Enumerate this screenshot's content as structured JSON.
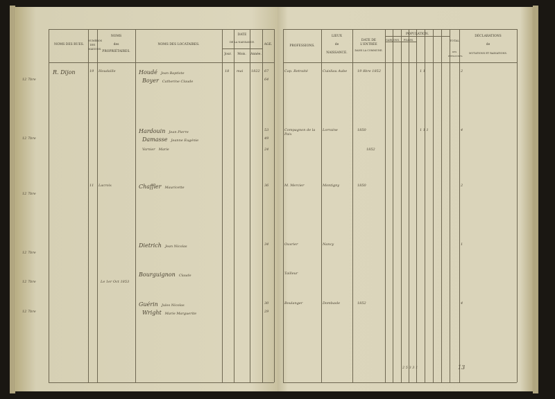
{
  "left_headers": {
    "rues": "Noms des rues.",
    "numeros": "Numéros des maisons.",
    "proprietaires_1": "Noms",
    "proprietaires_2": "des",
    "proprietaires_3": "propriétaires.",
    "locataires": "Noms des locataires.",
    "date": "Date",
    "date_sub": "de la naissance.",
    "jour": "Jour.",
    "mois": "Mois.",
    "annee": "Année.",
    "age": "Age."
  },
  "right_headers": {
    "professions": "Professions.",
    "lieux_1": "Lieux",
    "lieux_2": "de",
    "lieux_3": "naissance.",
    "entree_1": "Date de l'entrée",
    "entree_2": "dans la commune.",
    "population": "Population.",
    "garcons": "Garçons.",
    "filles": "Filles.",
    "total": "Total",
    "total_sub": "des personnes.",
    "declarations_1": "Déclarations",
    "declarations_2": "de",
    "declarations_3": "mutations et radiations."
  },
  "entries": [
    {
      "margin": "12 7bre",
      "rue": "R. Dijon",
      "num": "19",
      "prop": "Houdaille",
      "loc1": "Houdé",
      "loc1b": "Jean Baptiste",
      "loc2": "Boyer",
      "loc2b": "Catherine Claude",
      "jour": "18",
      "mois": "mai",
      "annee": "1822",
      "age": "67",
      "age2": "64",
      "prof": "Cap. Retraité",
      "lieu": "Cuisliau Aube",
      "entree": "19 8bre 1852",
      "pop": "1 1",
      "tot": "2"
    },
    {
      "margin": "12 7bre",
      "loc1": "Hardouin",
      "loc1b": "Jean Pierre",
      "loc2": "Damasse",
      "loc2b": "Jeanne Eugénie",
      "loc3": "Varnier",
      "loc3b": "Marie",
      "age": "53",
      "age2": "49",
      "age3": "24",
      "prof": "Compagnon de la Paix",
      "lieu": "Lorraine",
      "entree": "1850",
      "entree2": "1852",
      "pop": "1 1 1",
      "tot": "4"
    },
    {
      "margin": "12 7bre",
      "rue": "",
      "num": "11",
      "prop": "Lacroix",
      "loc1": "Chaffler",
      "loc1b": "Mauricette",
      "age": "36",
      "prof": "M. Mercier",
      "lieu": "Montigny",
      "entree": "1850",
      "tot": "2"
    },
    {
      "margin": "12 7bre",
      "loc1": "Dietrich",
      "loc1b": "Jean Nicolas",
      "age": "34",
      "prof": "Ouvrier",
      "lieu": "Nancy",
      "tot": "1"
    },
    {
      "margin": "12 7bre",
      "note": "Le 1er Oct 1853",
      "loc1": "Bourguignon",
      "loc1b": "Claude",
      "prof": "Tailleur"
    },
    {
      "margin": "12 7bre",
      "loc1": "Guérin",
      "loc1b": "Jules Nicolas",
      "loc2": "Wright",
      "loc2b": "Marie Marguerite",
      "age": "30",
      "age2": "29",
      "prof": "Boulanger",
      "lieu": "Dombasle",
      "entree": "1852",
      "tot": "4"
    }
  ],
  "totals": {
    "pop": "2 5 3 3 1",
    "tot": "13"
  }
}
